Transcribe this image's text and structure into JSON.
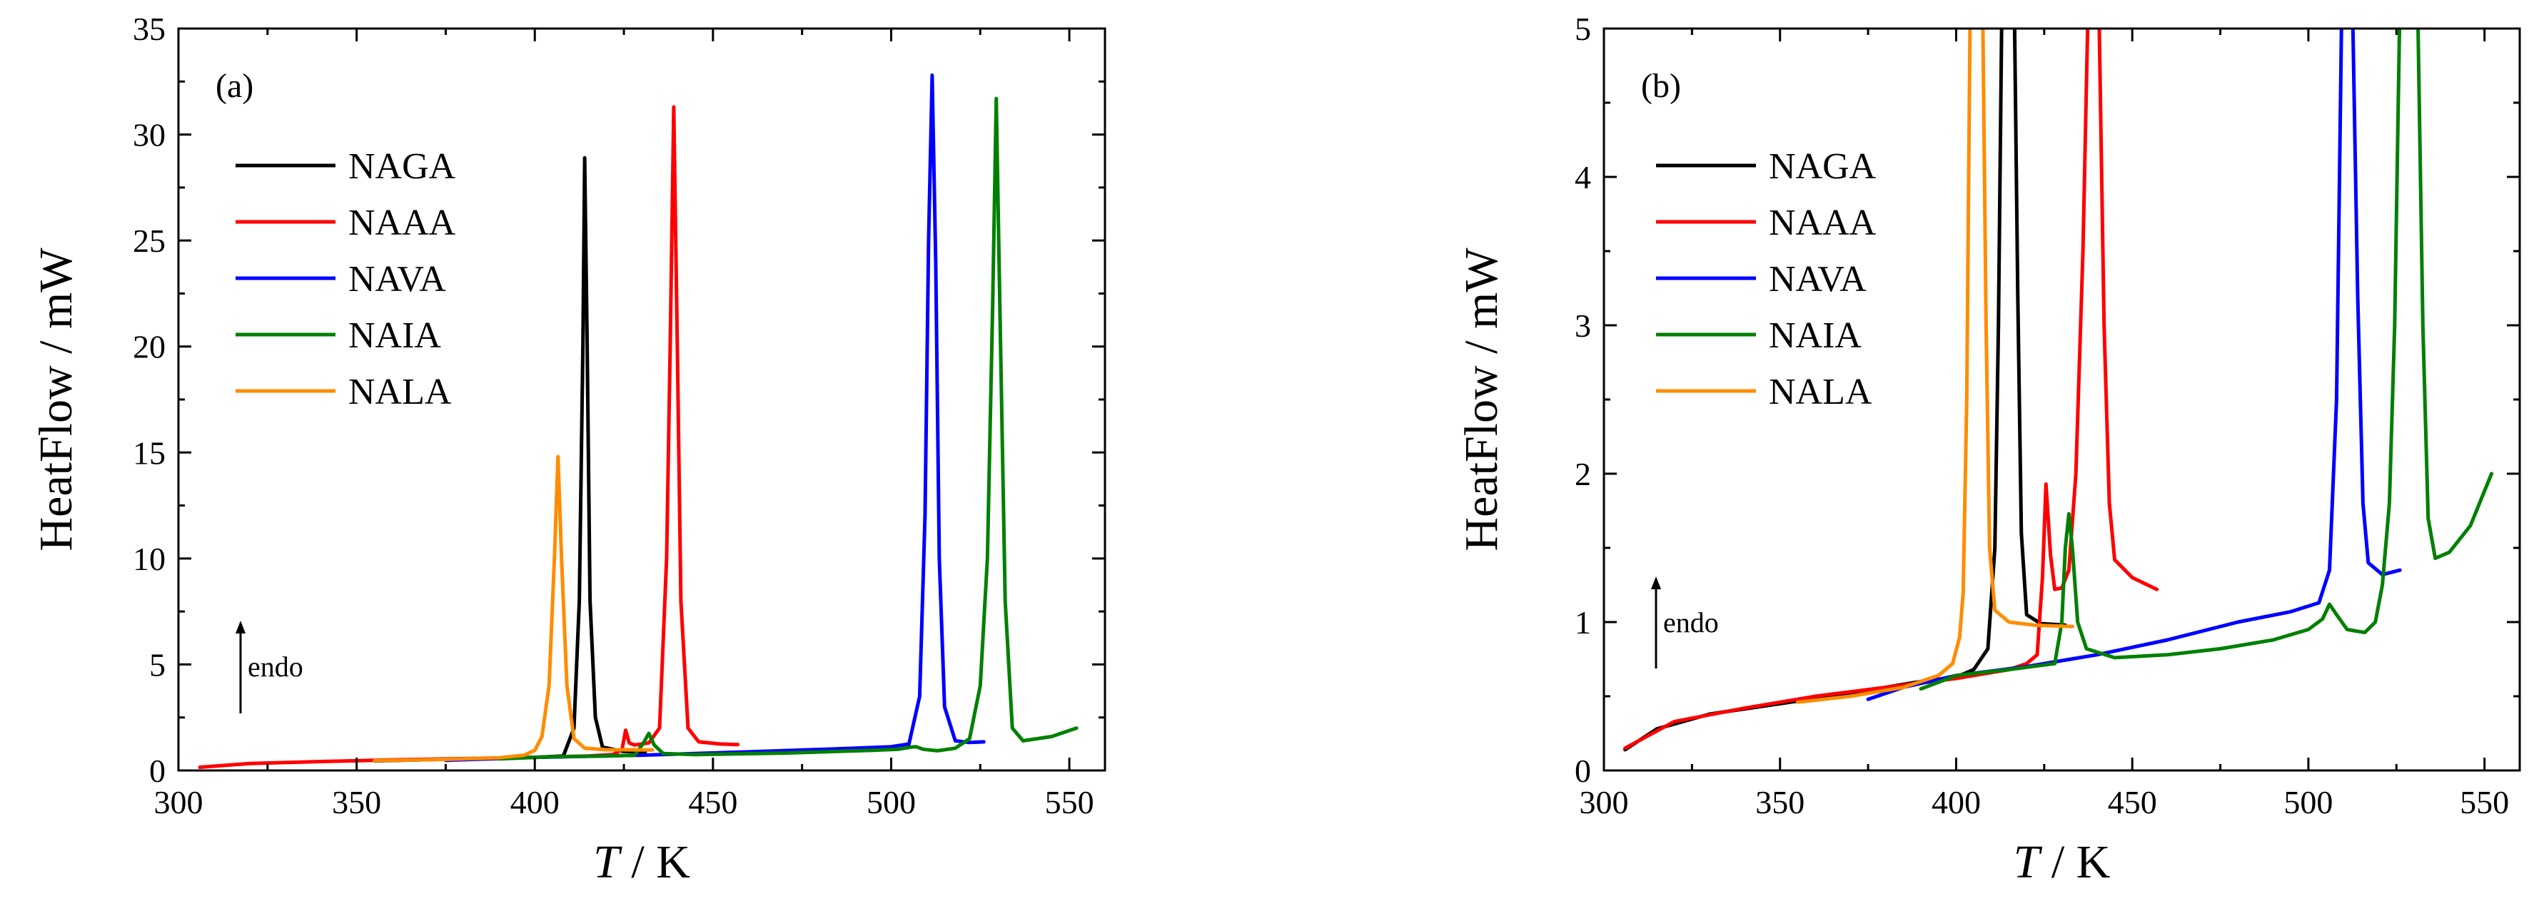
{
  "chart_data": [
    {
      "type": "line",
      "panel_label": "(a)",
      "xlabel": "T / K",
      "ylabel": "HeatFlow / mW",
      "xlim": [
        300,
        560
      ],
      "ylim": [
        0,
        35
      ],
      "xticks": [
        300,
        350,
        400,
        450,
        500,
        550
      ],
      "yticks": [
        0,
        5,
        10,
        15,
        20,
        25,
        30,
        35
      ],
      "legend_position": "upper-left",
      "annotation": "endo",
      "series": [
        {
          "name": "NAGA",
          "color": "#000000",
          "points": [
            [
              355,
              0.45
            ],
            [
              380,
              0.55
            ],
            [
              400,
              0.62
            ],
            [
              408,
              0.68
            ],
            [
              411,
              2.0
            ],
            [
              412.5,
              8
            ],
            [
              413.5,
              20
            ],
            [
              414,
              28.9
            ],
            [
              414.7,
              20
            ],
            [
              415.5,
              8
            ],
            [
              417,
              2.5
            ],
            [
              419,
              1.1
            ],
            [
              425,
              0.9
            ],
            [
              431,
              0.88
            ]
          ]
        },
        {
          "name": "NAAA",
          "color": "#ff0000",
          "points": [
            [
              306,
              0.15
            ],
            [
              320,
              0.33
            ],
            [
              340,
              0.42
            ],
            [
              360,
              0.5
            ],
            [
              380,
              0.56
            ],
            [
              400,
              0.62
            ],
            [
              415,
              0.68
            ],
            [
              422,
              0.75
            ],
            [
              424.5,
              1.0
            ],
            [
              425.5,
              1.9
            ],
            [
              426.5,
              1.3
            ],
            [
              428,
              1.2
            ],
            [
              432,
              1.3
            ],
            [
              435,
              2.0
            ],
            [
              437,
              10
            ],
            [
              438,
              20
            ],
            [
              439,
              31.3
            ],
            [
              440,
              20
            ],
            [
              441,
              8
            ],
            [
              443,
              2.0
            ],
            [
              446,
              1.35
            ],
            [
              452,
              1.25
            ],
            [
              457,
              1.22
            ]
          ]
        },
        {
          "name": "NAVA",
          "color": "#0000ff",
          "points": [
            [
              375,
              0.48
            ],
            [
              400,
              0.62
            ],
            [
              430,
              0.72
            ],
            [
              460,
              0.88
            ],
            [
              490,
              1.05
            ],
            [
              500,
              1.12
            ],
            [
              505,
              1.25
            ],
            [
              508,
              3.5
            ],
            [
              509.5,
              12
            ],
            [
              510.5,
              25
            ],
            [
              511.5,
              32.8
            ],
            [
              512.5,
              24
            ],
            [
              513.5,
              10
            ],
            [
              515,
              3.0
            ],
            [
              518,
              1.4
            ],
            [
              522,
              1.32
            ],
            [
              526,
              1.35
            ]
          ]
        },
        {
          "name": "NAIA",
          "color": "#008000",
          "points": [
            [
              390,
              0.55
            ],
            [
              405,
              0.65
            ],
            [
              420,
              0.68
            ],
            [
              428,
              0.72
            ],
            [
              430.5,
              1.3
            ],
            [
              432,
              1.75
            ],
            [
              433.5,
              1.2
            ],
            [
              436,
              0.8
            ],
            [
              445,
              0.75
            ],
            [
              470,
              0.82
            ],
            [
              495,
              0.95
            ],
            [
              502,
              1.0
            ],
            [
              505.5,
              1.1
            ],
            [
              507,
              1.12
            ],
            [
              509,
              1.0
            ],
            [
              513,
              0.93
            ],
            [
              518,
              1.05
            ],
            [
              522,
              1.5
            ],
            [
              525,
              4
            ],
            [
              527,
              10
            ],
            [
              528.5,
              22
            ],
            [
              529.5,
              31.7
            ],
            [
              530.5,
              22
            ],
            [
              532,
              8
            ],
            [
              534,
              2.0
            ],
            [
              537,
              1.4
            ],
            [
              545,
              1.6
            ],
            [
              552,
              2.0
            ]
          ]
        },
        {
          "name": "NALA",
          "color": "#ff8c00",
          "points": [
            [
              355,
              0.46
            ],
            [
              375,
              0.52
            ],
            [
              390,
              0.6
            ],
            [
              397,
              0.72
            ],
            [
              400,
              0.95
            ],
            [
              402,
              1.6
            ],
            [
              404,
              4
            ],
            [
              405.5,
              10
            ],
            [
              406.5,
              14.8
            ],
            [
              407.5,
              10
            ],
            [
              409,
              4
            ],
            [
              411,
              1.5
            ],
            [
              414,
              1.05
            ],
            [
              420,
              0.98
            ],
            [
              433,
              0.97
            ]
          ]
        }
      ]
    },
    {
      "type": "line",
      "panel_label": "(b)",
      "xlabel": "T / K",
      "ylabel": "HeatFlow / mW",
      "xlim": [
        300,
        560
      ],
      "ylim": [
        0,
        5
      ],
      "xticks": [
        300,
        350,
        400,
        450,
        500,
        550
      ],
      "yticks": [
        0,
        1,
        2,
        3,
        4,
        5
      ],
      "legend_position": "upper-left",
      "annotation": "endo",
      "series": [
        {
          "name": "NAGA",
          "color": "#000000",
          "points": [
            [
              306,
              0.14
            ],
            [
              315,
              0.28
            ],
            [
              330,
              0.38
            ],
            [
              350,
              0.45
            ],
            [
              370,
              0.52
            ],
            [
              390,
              0.6
            ],
            [
              400,
              0.63
            ],
            [
              405,
              0.68
            ],
            [
              409,
              0.82
            ],
            [
              411,
              1.5
            ],
            [
              412,
              3
            ],
            [
              413,
              5.2
            ],
            [
              416.5,
              5.2
            ],
            [
              417.5,
              3.2
            ],
            [
              418.5,
              1.6
            ],
            [
              420,
              1.05
            ],
            [
              424,
              0.99
            ],
            [
              431,
              0.98
            ]
          ]
        },
        {
          "name": "NAAA",
          "color": "#ff0000",
          "points": [
            [
              306,
              0.15
            ],
            [
              320,
              0.33
            ],
            [
              340,
              0.42
            ],
            [
              360,
              0.5
            ],
            [
              380,
              0.56
            ],
            [
              400,
              0.62
            ],
            [
              415,
              0.68
            ],
            [
              420,
              0.72
            ],
            [
              423,
              0.78
            ],
            [
              424.5,
              1.3
            ],
            [
              425.5,
              1.93
            ],
            [
              426.8,
              1.45
            ],
            [
              428,
              1.22
            ],
            [
              430,
              1.23
            ],
            [
              432,
              1.35
            ],
            [
              434,
              2.0
            ],
            [
              436,
              3.5
            ],
            [
              437.5,
              5.2
            ],
            [
              440.5,
              5.2
            ],
            [
              442,
              3.0
            ],
            [
              443.5,
              1.8
            ],
            [
              445,
              1.42
            ],
            [
              450,
              1.3
            ],
            [
              457,
              1.22
            ]
          ]
        },
        {
          "name": "NAVA",
          "color": "#0000ff",
          "points": [
            [
              375,
              0.48
            ],
            [
              385,
              0.56
            ],
            [
              400,
              0.64
            ],
            [
              420,
              0.7
            ],
            [
              440,
              0.78
            ],
            [
              460,
              0.88
            ],
            [
              480,
              1.0
            ],
            [
              495,
              1.07
            ],
            [
              503,
              1.13
            ],
            [
              506,
              1.35
            ],
            [
              508,
              2.5
            ],
            [
              509.5,
              5.2
            ],
            [
              512.5,
              5.2
            ],
            [
              514,
              3.2
            ],
            [
              515.5,
              1.8
            ],
            [
              517,
              1.4
            ],
            [
              521,
              1.32
            ],
            [
              526,
              1.35
            ]
          ]
        },
        {
          "name": "NAIA",
          "color": "#008000",
          "points": [
            [
              390,
              0.55
            ],
            [
              400,
              0.64
            ],
            [
              415,
              0.68
            ],
            [
              428,
              0.72
            ],
            [
              430,
              1.0
            ],
            [
              431,
              1.5
            ],
            [
              432,
              1.73
            ],
            [
              433,
              1.5
            ],
            [
              434.5,
              1.0
            ],
            [
              437,
              0.82
            ],
            [
              445,
              0.76
            ],
            [
              460,
              0.78
            ],
            [
              475,
              0.82
            ],
            [
              490,
              0.88
            ],
            [
              500,
              0.95
            ],
            [
              504,
              1.02
            ],
            [
              506,
              1.12
            ],
            [
              508,
              1.05
            ],
            [
              511,
              0.95
            ],
            [
              516,
              0.93
            ],
            [
              519,
              1.0
            ],
            [
              521,
              1.25
            ],
            [
              523,
              1.8
            ],
            [
              524.5,
              3
            ],
            [
              526,
              5.2
            ],
            [
              531,
              5.2
            ],
            [
              532.5,
              3
            ],
            [
              534,
              1.7
            ],
            [
              536,
              1.43
            ],
            [
              540,
              1.47
            ],
            [
              546,
              1.65
            ],
            [
              552,
              2.0
            ]
          ]
        },
        {
          "name": "NALA",
          "color": "#ff8c00",
          "points": [
            [
              355,
              0.46
            ],
            [
              370,
              0.5
            ],
            [
              385,
              0.56
            ],
            [
              395,
              0.64
            ],
            [
              399,
              0.72
            ],
            [
              401,
              0.9
            ],
            [
              402,
              1.2
            ],
            [
              403,
              2.5
            ],
            [
              404,
              5.2
            ],
            [
              407.5,
              5.2
            ],
            [
              408.5,
              3
            ],
            [
              409.5,
              1.5
            ],
            [
              411,
              1.08
            ],
            [
              415,
              1.0
            ],
            [
              422,
              0.98
            ],
            [
              433,
              0.97
            ]
          ]
        }
      ]
    }
  ]
}
